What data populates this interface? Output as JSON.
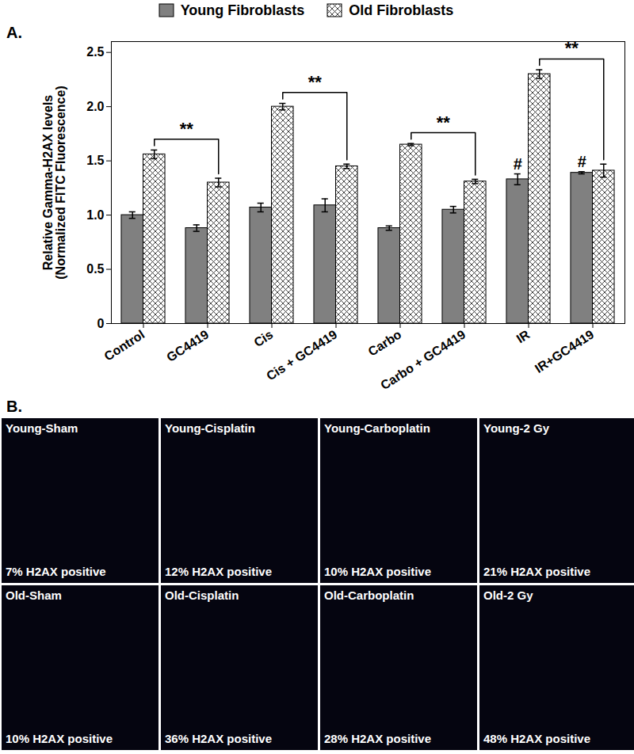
{
  "chart_data": {
    "type": "bar",
    "panel_label": "A.",
    "ylabel": "Relative Gamma-H2AX levels\n(Normalized FITC Fluorescence)",
    "categories": [
      "Control",
      "GC4419",
      "Cis",
      "Cis + GC4419",
      "Carbo",
      "Carbo + GC4419",
      "IR",
      "IR+GC4419"
    ],
    "series": [
      {
        "name": "Young Fibroblasts",
        "color": "#808080",
        "values": [
          1.0,
          0.88,
          1.07,
          1.09,
          0.88,
          1.05,
          1.33,
          1.39
        ],
        "errors": [
          0.03,
          0.03,
          0.04,
          0.06,
          0.02,
          0.03,
          0.05,
          0.01
        ]
      },
      {
        "name": "Old Fibroblasts",
        "color": "#303030",
        "values": [
          1.56,
          1.3,
          2.0,
          1.45,
          1.65,
          1.31,
          2.3,
          1.41
        ],
        "errors": [
          0.04,
          0.04,
          0.03,
          0.02,
          0.01,
          0.02,
          0.04,
          0.06
        ]
      }
    ],
    "ylim": [
      0,
      2.6
    ],
    "yticks": [
      0,
      0.5,
      {
        "value": 1,
        "label": "1.0"
      },
      1.5,
      {
        "value": 2,
        "label": "2.0"
      },
      2.5
    ],
    "grid": false,
    "legend": "top",
    "significance": [
      {
        "from": "Control",
        "to": "GC4419",
        "series": "Old Fibroblasts",
        "label": "**"
      },
      {
        "from": "Cis",
        "to": "Cis + GC4419",
        "series": "Old Fibroblasts",
        "label": "**"
      },
      {
        "from": "Carbo",
        "to": "Carbo + GC4419",
        "series": "Old Fibroblasts",
        "label": "**"
      },
      {
        "from": "IR",
        "to": "IR+GC4419",
        "series": "Old Fibroblasts",
        "label": "**"
      }
    ],
    "annotations": [
      {
        "category": "IR",
        "series": "Young Fibroblasts",
        "text": "#"
      },
      {
        "category": "IR+GC4419",
        "series": "Young Fibroblasts",
        "text": "#"
      }
    ]
  },
  "panel_b": {
    "label": "B.",
    "panels": [
      {
        "title": "Young-Sham",
        "caption": "7% H2AX positive"
      },
      {
        "title": "Young-Cisplatin",
        "caption": "12% H2AX positive"
      },
      {
        "title": "Young-Carboplatin",
        "caption": "10% H2AX positive"
      },
      {
        "title": "Young-2 Gy",
        "caption": "21% H2AX positive"
      },
      {
        "title": "Old-Sham",
        "caption": "10% H2AX positive"
      },
      {
        "title": "Old-Cisplatin",
        "caption": "36% H2AX positive"
      },
      {
        "title": "Old-Carboplatin",
        "caption": "28% H2AX positive"
      },
      {
        "title": "Old-2 Gy",
        "caption": "48% H2AX positive"
      }
    ]
  }
}
